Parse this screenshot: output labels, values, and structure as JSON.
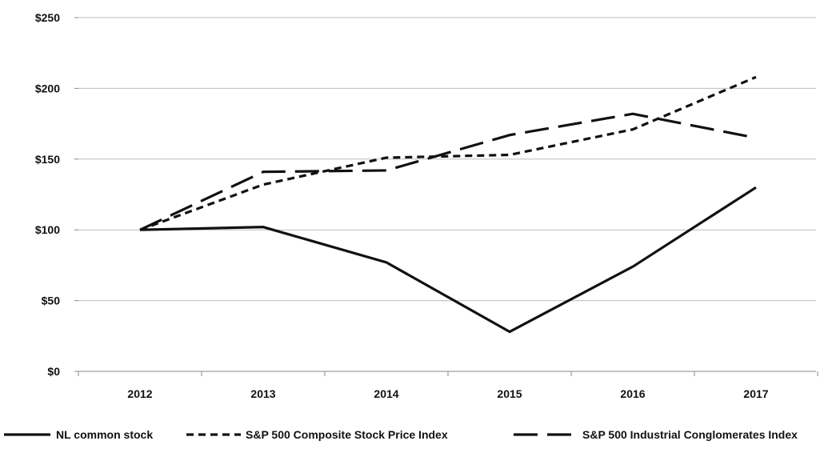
{
  "chart_data": {
    "type": "line",
    "x": [
      "2012",
      "2013",
      "2014",
      "2015",
      "2016",
      "2017"
    ],
    "yticks": [
      "$0",
      "$50",
      "$100",
      "$150",
      "$200",
      "$250"
    ],
    "ylim": [
      0,
      250
    ],
    "grid": "horizontal",
    "legend_position": "bottom",
    "series": [
      {
        "name": "NL common stock",
        "style": "solid",
        "color": "#111111",
        "values": [
          100,
          102,
          77,
          28,
          74,
          130
        ]
      },
      {
        "name": "S&P 500 Composite Stock Price Index",
        "style": "short-dash",
        "color": "#111111",
        "values": [
          100,
          132,
          151,
          153,
          171,
          208
        ]
      },
      {
        "name": "S&P 500 Industrial Conglomerates Index",
        "style": "long-dash",
        "color": "#111111",
        "values": [
          100,
          141,
          142,
          167,
          182,
          165
        ]
      }
    ]
  }
}
